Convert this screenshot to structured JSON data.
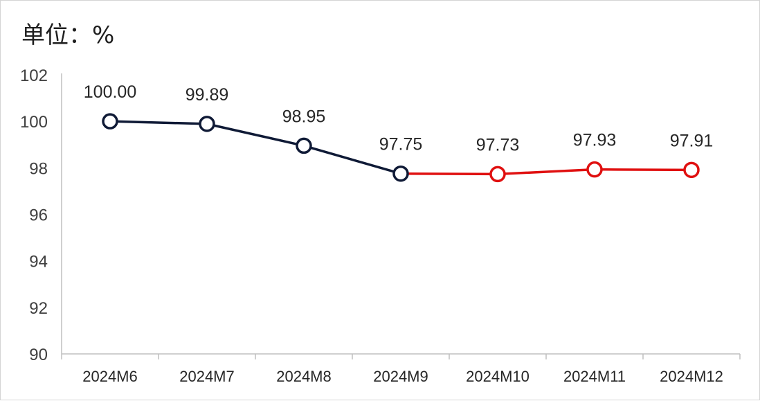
{
  "unit_label": "单位：%",
  "chart_data": {
    "type": "line",
    "categories": [
      "2024M6",
      "2024M7",
      "2024M8",
      "2024M9",
      "2024M10",
      "2024M11",
      "2024M12"
    ],
    "values": [
      100.0,
      99.89,
      98.95,
      97.75,
      97.73,
      97.93,
      97.91
    ],
    "data_labels": [
      "100.00",
      "99.89",
      "98.95",
      "97.75",
      "97.73",
      "97.93",
      "97.91"
    ],
    "yticks": [
      90,
      92,
      94,
      96,
      98,
      100,
      102
    ],
    "ylim": [
      90,
      102
    ],
    "grid": false,
    "legend": "none",
    "colors": {
      "line_primary": "#0f1a36",
      "line_highlight": "#e01010",
      "axis": "#bfbfbf"
    },
    "highlight_from_index": 4
  }
}
